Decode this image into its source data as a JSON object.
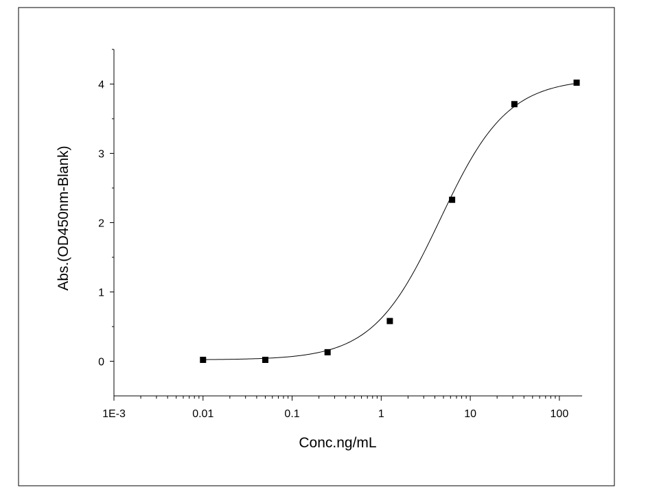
{
  "chart_data": {
    "type": "scatter",
    "title": "",
    "xlabel": "Conc.ng/mL",
    "ylabel": "Abs.(OD450nm-Blank)",
    "x_scale": "log",
    "xlim": [
      0.001,
      180
    ],
    "ylim": [
      -0.5,
      4.5
    ],
    "x_ticks": [
      0.001,
      0.01,
      0.1,
      1,
      10,
      100
    ],
    "x_tick_labels": [
      "1E-3",
      "0.01",
      "0.1",
      "1",
      "10",
      "100"
    ],
    "y_ticks": [
      0,
      1,
      2,
      3,
      4
    ],
    "y_tick_labels": [
      "0",
      "1",
      "2",
      "3",
      "4"
    ],
    "grid": false,
    "legend": "none",
    "series": [
      {
        "marker": "square",
        "x": [
          0.01,
          0.05,
          0.25,
          1.25,
          6.25,
          31.25,
          156.25
        ],
        "y": [
          0.02,
          0.02,
          0.13,
          0.58,
          2.33,
          3.71,
          4.02
        ]
      }
    ],
    "fit_curve": {
      "model": "4PL",
      "A": 0.02,
      "D": 4.08,
      "C": 4.6,
      "B": 1.15
    },
    "colors": {
      "line": "#000000",
      "marker": "#000000",
      "frame": "#000000",
      "background": "#ffffff"
    }
  }
}
